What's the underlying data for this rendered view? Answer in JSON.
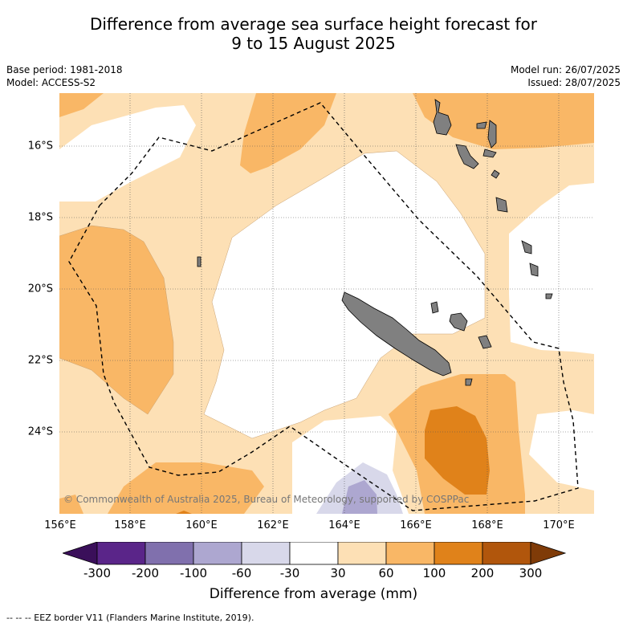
{
  "title": {
    "line1": "Difference from average sea surface height forecast for",
    "line2": "9 to 15 August 2025"
  },
  "meta": {
    "base_period": "Base period: 1981-2018",
    "model": "Model: ACCESS-S2",
    "model_run": "Model run: 26/07/2025",
    "issued": "Issued: 28/07/2025"
  },
  "map": {
    "x_ticks": [
      "156°E",
      "158°E",
      "160°E",
      "162°E",
      "164°E",
      "166°E",
      "168°E",
      "170°E"
    ],
    "y_ticks": [
      "16°S",
      "18°S",
      "20°S",
      "22°S",
      "24°S"
    ],
    "copyright": "© Commonwealth of Australia 2025, Bureau of Meteorology, supported by COSPPac",
    "colors": {
      "n300": "#3a0f5a",
      "n200": "#5a2589",
      "n100": "#8070ad",
      "n60": "#ada7d0",
      "n30": "#d8d8ea",
      "zero": "#ffffff",
      "p30": "#fde0b5",
      "p60": "#f9b766",
      "p100": "#e0821a",
      "p200": "#b1560c",
      "p300": "#7f3b08",
      "land": "#808080"
    }
  },
  "colorbar": {
    "labels": [
      "-300",
      "-200",
      "-100",
      "-60",
      "-30",
      "30",
      "60",
      "100",
      "200",
      "300"
    ],
    "title": "Difference from average (mm)"
  },
  "footnote": "-- -- -- EEZ border V11 (Flanders Marine Institute, 2019)."
}
